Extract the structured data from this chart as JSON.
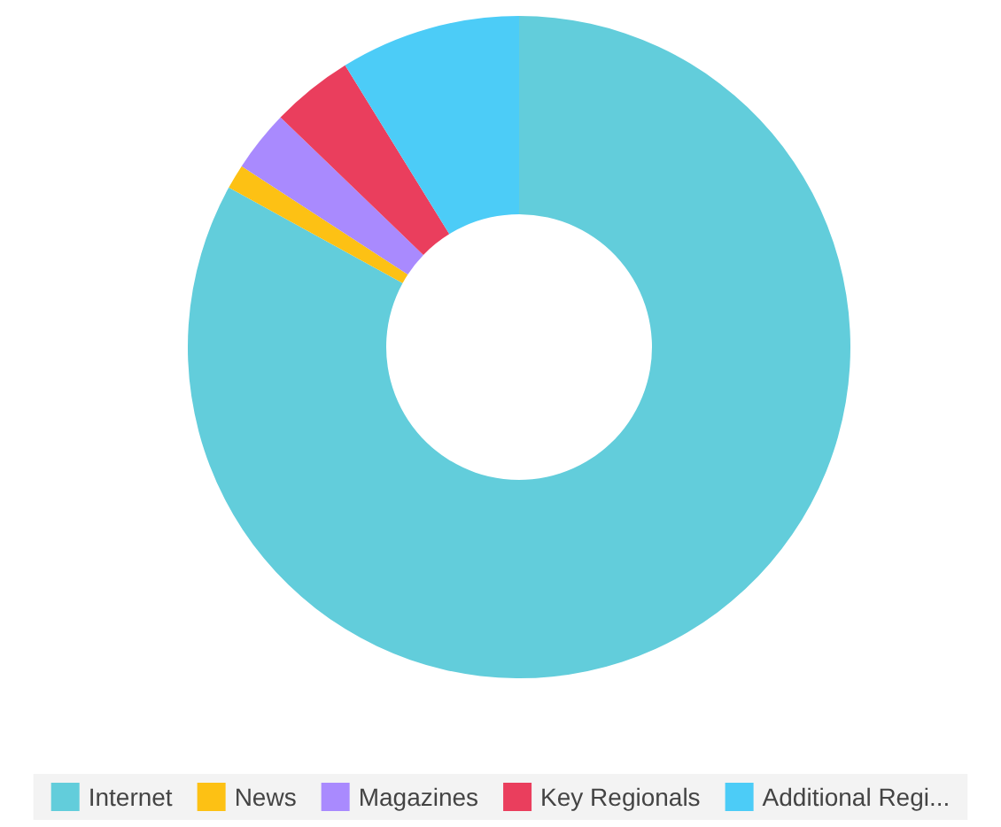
{
  "chart_data": {
    "type": "donut",
    "categories": [
      "Internet",
      "News",
      "Magazines",
      "Key Regionals",
      "Additional Regi..."
    ],
    "values": [
      83,
      1.2,
      3,
      4,
      8.8
    ],
    "colors": [
      "#62cddb",
      "#fdc114",
      "#a98afe",
      "#ea3e5d",
      "#4cccf7"
    ],
    "legend": "bottom"
  }
}
